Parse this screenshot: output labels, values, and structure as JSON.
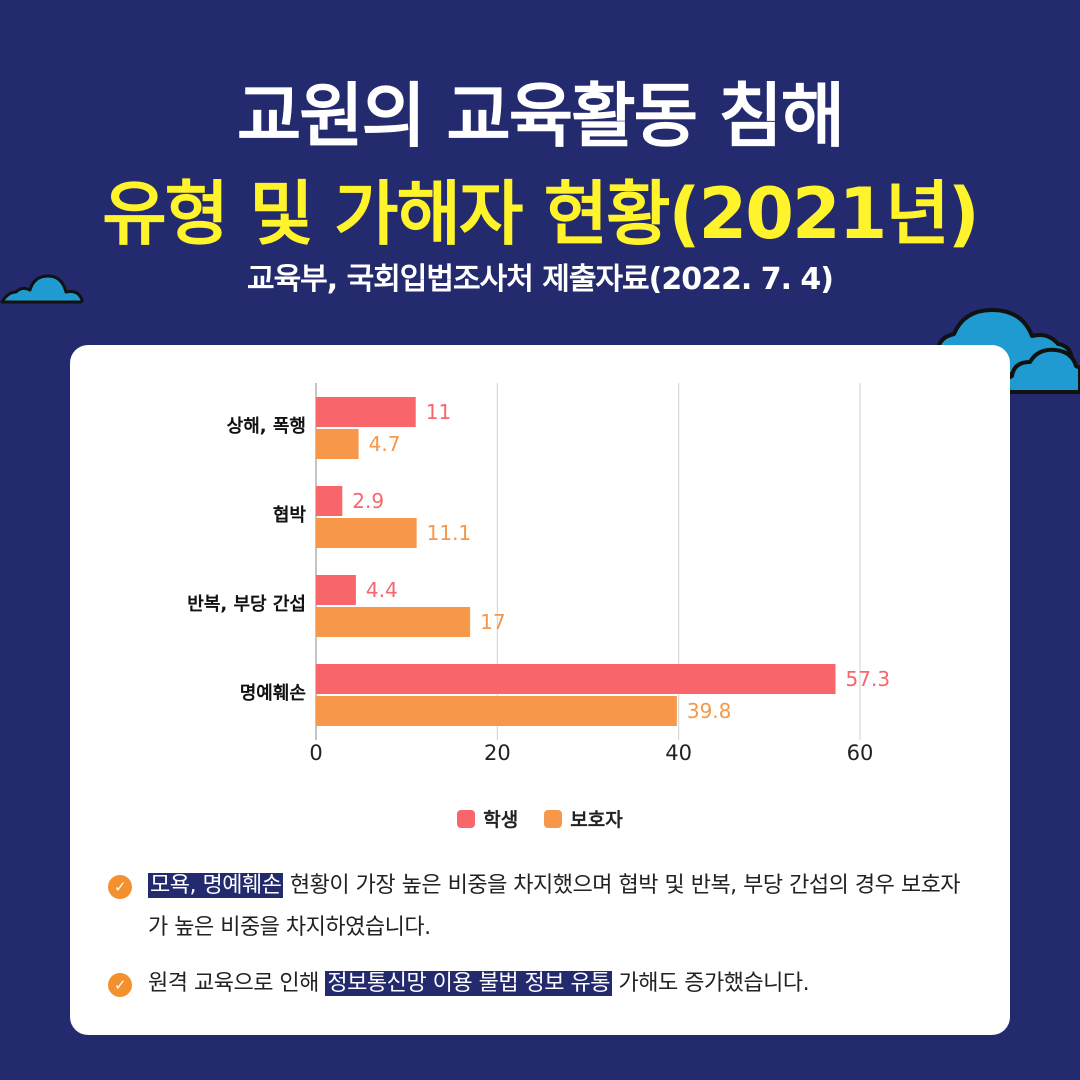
{
  "header": {
    "title_line1": "교원의 교육활동 침해",
    "title_line2": "유형 및 가해자 현황(2021년)",
    "source": "교육부, 국회입법조사처 제출자료(2022. 7. 4)"
  },
  "colors": {
    "background": "#232a6e",
    "title_highlight": "#fff32b",
    "student": "#f8666b",
    "guardian": "#f7974a",
    "cloud": "#1f9bd1"
  },
  "chart_data": {
    "type": "bar",
    "orientation": "horizontal",
    "categories": [
      "상해, 폭행",
      "협박",
      "반복, 부당 간섭",
      "명예훼손"
    ],
    "series": [
      {
        "name": "학생",
        "values": [
          11,
          2.9,
          4.4,
          57.3
        ],
        "color": "#f8666b"
      },
      {
        "name": "보호자",
        "values": [
          4.7,
          11.1,
          17,
          39.8
        ],
        "color": "#f7974a"
      }
    ],
    "xlim": [
      0,
      60
    ],
    "xticks": [
      0,
      20,
      40,
      60
    ],
    "grid": true,
    "legend_position": "bottom",
    "data_labels": true
  },
  "legend": {
    "items": [
      {
        "label": "학생",
        "color": "#f8666b"
      },
      {
        "label": "보호자",
        "color": "#f7974a"
      }
    ]
  },
  "notes": [
    {
      "highlight": "모욕, 명예훼손",
      "text_after": " 현황이 가장 높은 비중을 차지했으며 협박 및 반복, 부당 간섭의 경우 보호자가 높은 비중을 차지하였습니다."
    },
    {
      "text_before": "원격 교육으로 인해 ",
      "highlight": "정보통신망 이용 불법 정보 유통",
      "text_after": " 가해도 증가했습니다."
    }
  ]
}
